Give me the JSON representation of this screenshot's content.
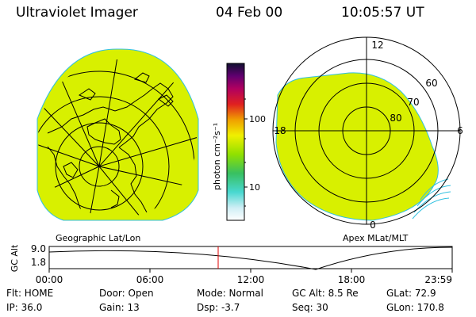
{
  "header": {
    "title": "Ultraviolet Imager",
    "date": "04 Feb 00",
    "time": "10:05:57 UT"
  },
  "left_panel": {
    "label": "Geographic Lat/Lon"
  },
  "right_panel": {
    "label": "Apex MLat/MLT",
    "mlt_labels": [
      "12",
      "18",
      "6",
      "0"
    ],
    "lat_labels": [
      "60",
      "70",
      "80"
    ]
  },
  "colorbar": {
    "unit_label": "photon cm⁻²s⁻¹",
    "tick_labels": [
      "100",
      "10"
    ]
  },
  "altitude_plot": {
    "ylabel": "GC Alt",
    "y_ticks": [
      "9.0",
      "1.8"
    ],
    "x_ticks": [
      "00:00",
      "06:00",
      "12:00",
      "18:00",
      "23:59"
    ],
    "current_time_marker": "10:05:57"
  },
  "footer": {
    "flt": "Flt: HOME",
    "ip": "IP: 36.0",
    "door": "Door: Open",
    "gain": "Gain: 13",
    "mode": "Mode: Normal",
    "dsp": "Dsp:    -3.7",
    "gcalt": "GC Alt: 8.5 Re",
    "seq": "Seq: 30",
    "glat": "GLat:   72.9",
    "glon": "GLon:  170.8"
  },
  "colors": {
    "image_fill": "#d8f000",
    "marker": "#e00000"
  }
}
